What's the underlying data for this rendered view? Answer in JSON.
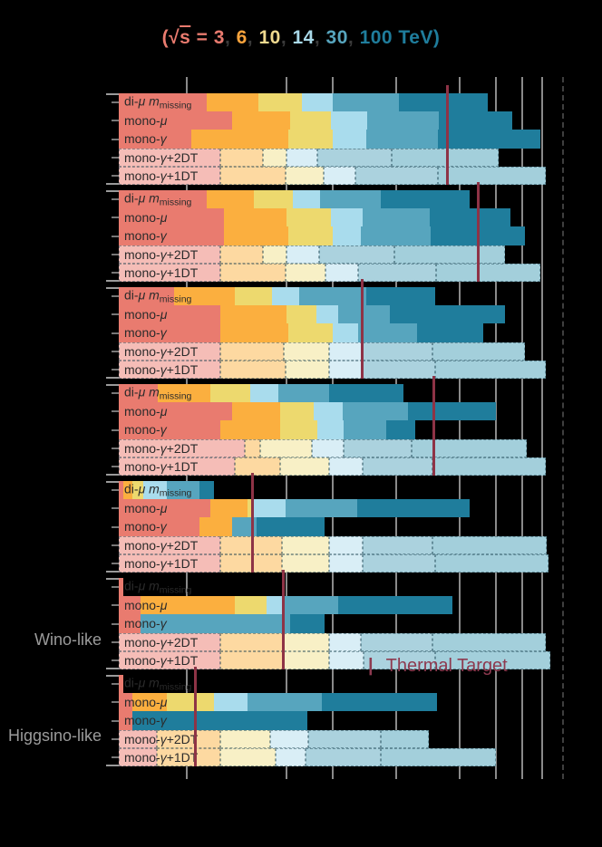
{
  "chart_data": {
    "type": "bar",
    "orientation": "horizontal-overlaid-staircase",
    "title_parts": [
      {
        "text": "(√",
        "color": "#E97B6F"
      },
      {
        "text": "s",
        "color": "#E97B6F",
        "overline": true
      },
      {
        "text": " = ",
        "color": "#E97B6F"
      },
      {
        "text": "3",
        "color": "#E97B6F"
      },
      {
        "text": ",  ",
        "color": "#3a3a3a"
      },
      {
        "text": "6",
        "color": "#F9A33C"
      },
      {
        "text": ",  ",
        "color": "#3a3a3a"
      },
      {
        "text": "10",
        "color": "#EFD98F"
      },
      {
        "text": ",  ",
        "color": "#3a3a3a"
      },
      {
        "text": "14",
        "color": "#A9D9E9"
      },
      {
        "text": ",  ",
        "color": "#3a3a3a"
      },
      {
        "text": "30",
        "color": "#57A5BE"
      },
      {
        "text": ",  ",
        "color": "#3a3a3a"
      },
      {
        "text": "100 TeV)",
        "color": "#1F7D9C"
      }
    ],
    "energies_tev": [
      3,
      6,
      10,
      14,
      30,
      100
    ],
    "energy_colors_solid": [
      "#E97B6F",
      "#FBAF3F",
      "#EDD96E",
      "#A9DCED",
      "#57A5BE",
      "#1F7D9C"
    ],
    "energy_colors_faded": [
      "#F5BDB7",
      "#FDD9A1",
      "#F8F0C6",
      "#D9EEF6",
      "#ABD2DE",
      "#A3CFDB"
    ],
    "x_axis": {
      "scale": "log",
      "unit": "TeV",
      "gridlines_tev": [
        1,
        3,
        5,
        10,
        20,
        30,
        40,
        50
      ],
      "range_tev": [
        0.47,
        62
      ]
    },
    "legend": {
      "marker": "|",
      "label": "Thermal Target",
      "color": "#8E3A50"
    },
    "row_label_parts": [
      [
        {
          "t": "di-"
        },
        {
          "t": "μ",
          "i": true
        },
        {
          "t": " "
        },
        {
          "t": "m",
          "i": true
        },
        {
          "t": "missing",
          "sub": true
        }
      ],
      [
        {
          "t": "mono-"
        },
        {
          "t": "μ",
          "i": true
        }
      ],
      [
        {
          "t": "mono-"
        },
        {
          "t": "γ",
          "i": true
        }
      ],
      [
        {
          "t": "mono-"
        },
        {
          "t": "γ",
          "i": true
        },
        {
          "t": "+2DT"
        }
      ],
      [
        {
          "t": "mono-"
        },
        {
          "t": "γ",
          "i": true
        },
        {
          "t": "+1DT"
        }
      ]
    ],
    "row_styles": [
      "solid",
      "solid",
      "solid",
      "faded",
      "faded"
    ],
    "groups": [
      {
        "left_label": "",
        "thermal_target_tev": 17.5,
        "reach_tev": [
          [
            1.25,
            2.2,
            3.55,
            5.0,
            10.3,
            27.5
          ],
          [
            1.65,
            3.1,
            4.9,
            7.3,
            15.9,
            36
          ],
          [
            1.05,
            3.05,
            5.0,
            7.2,
            15.8,
            49
          ],
          [
            1.45,
            2.3,
            3.0,
            4.2,
            9.5,
            31
          ],
          [
            1.45,
            2.95,
            4.5,
            6.4,
            15.8,
            52
          ]
        ]
      },
      {
        "left_label": "",
        "thermal_target_tev": 24.6,
        "reach_tev": [
          [
            1.25,
            2.1,
            3.2,
            4.35,
            8.4,
            22.5
          ],
          [
            1.5,
            3.0,
            4.9,
            6.9,
            14.4,
            35
          ],
          [
            1.5,
            3.05,
            5.0,
            6.8,
            14.6,
            41
          ],
          [
            1.45,
            2.3,
            3.0,
            4.3,
            9.8,
            33
          ],
          [
            1.45,
            2.95,
            4.6,
            6.6,
            15.5,
            49
          ]
        ]
      },
      {
        "left_label": "",
        "thermal_target_tev": 6.9,
        "reach_tev": [
          [
            0.87,
            1.7,
            2.55,
            3.45,
            7.2,
            15.3
          ],
          [
            1.45,
            3.0,
            4.15,
            5.3,
            9.3,
            33
          ],
          [
            1.45,
            3.05,
            5.0,
            6.6,
            12.6,
            26
          ],
          [
            1.45,
            2.9,
            4.8,
            6.9,
            14.9,
            41
          ],
          [
            1.45,
            2.95,
            4.8,
            6.9,
            15.3,
            52
          ]
        ]
      },
      {
        "left_label": "",
        "thermal_target_tev": 15.1,
        "reach_tev": [
          [
            0.73,
            1.3,
            2.0,
            2.75,
            4.8,
            10.8
          ],
          [
            1.65,
            2.8,
            4.05,
            5.55,
            11.4,
            30
          ],
          [
            1.45,
            2.8,
            4.2,
            5.6,
            9.0,
            12.3
          ],
          [
            1.9,
            2.25,
            3.95,
            5.6,
            11.9,
            42
          ],
          [
            1.7,
            2.8,
            4.8,
            6.9,
            14.9,
            52
          ]
        ]
      },
      {
        "left_label": "",
        "thermal_target_tev": 2.05,
        "reach_tev": [
          [
            0.5,
            0.55,
            0.62,
            0.8,
            1.15,
            1.35
          ],
          [
            1.3,
            1.95,
            2.05,
            2.95,
            6.5,
            22.5
          ],
          [
            1.15,
            1.65,
            1.65,
            1.65,
            2.15,
            4.55
          ],
          [
            1.45,
            2.85,
            4.8,
            6.9,
            14.9,
            52.5
          ],
          [
            1.45,
            2.85,
            4.8,
            6.9,
            15.3,
            53.5
          ]
        ]
      },
      {
        "left_label": "Wino-like",
        "thermal_target_tev": 2.9,
        "reach_tev": [
          [
            0.5,
            0.5,
            0.5,
            0.5,
            0.5,
            0.5
          ],
          [
            0.6,
            1.7,
            2.4,
            2.9,
            5.3,
            18.5
          ],
          [
            0.6,
            0.6,
            0.6,
            0.6,
            3.1,
            4.55
          ],
          [
            1.45,
            2.9,
            4.8,
            6.8,
            14.9,
            52
          ],
          [
            1.45,
            2.9,
            4.8,
            7.0,
            15.3,
            54.5
          ]
        ]
      },
      {
        "left_label": "Higgsino-like",
        "thermal_target_tev": 1.1,
        "reach_tev": [
          [
            0.5,
            0.5,
            0.5,
            0.5,
            0.5,
            0.5
          ],
          [
            0.55,
            0.8,
            1.35,
            1.95,
            4.4,
            15.7
          ],
          [
            0.55,
            0.55,
            0.55,
            0.55,
            0.55,
            3.75
          ],
          [
            0.72,
            1.45,
            2.5,
            3.8,
            8.4,
            14.3
          ],
          [
            0.72,
            1.45,
            2.65,
            3.7,
            8.4,
            30
          ]
        ]
      }
    ]
  }
}
